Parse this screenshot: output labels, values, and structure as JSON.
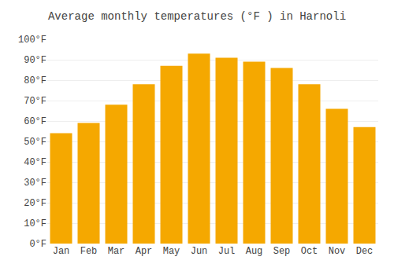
{
  "chart_data": {
    "type": "bar",
    "title": "Average monthly temperatures (°F ) in Harnoli",
    "categories": [
      "Jan",
      "Feb",
      "Mar",
      "Apr",
      "May",
      "Jun",
      "Jul",
      "Aug",
      "Sep",
      "Oct",
      "Nov",
      "Dec"
    ],
    "values": [
      54,
      59,
      68,
      78,
      87,
      93,
      91,
      89,
      86,
      78,
      66,
      57
    ],
    "color": "#F5A800",
    "ylim": [
      0,
      100
    ],
    "yticks": [
      {
        "value": 0,
        "label": "0°F"
      },
      {
        "value": 10,
        "label": "10°F"
      },
      {
        "value": 20,
        "label": "20°F"
      },
      {
        "value": 30,
        "label": "30°F"
      },
      {
        "value": 40,
        "label": "40°F"
      },
      {
        "value": 50,
        "label": "50°F"
      },
      {
        "value": 60,
        "label": "60°F"
      },
      {
        "value": 70,
        "label": "70°F"
      },
      {
        "value": 80,
        "label": "80°F"
      },
      {
        "value": 90,
        "label": "90°F"
      },
      {
        "value": 100,
        "label": "100°F"
      }
    ],
    "grid": true
  }
}
